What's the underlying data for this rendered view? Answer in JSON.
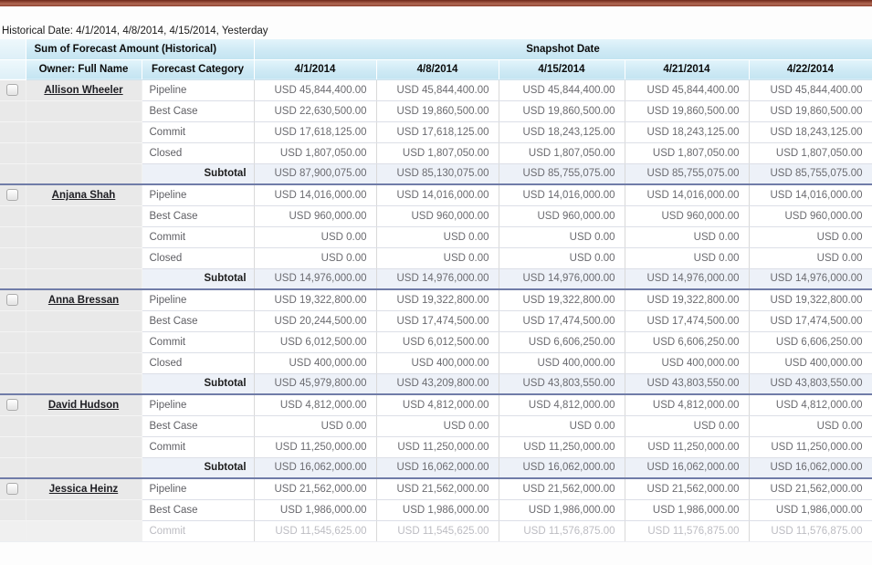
{
  "page": {
    "historical_date_line": "Historical Date: 4/1/2014, 4/8/2014, 4/15/2014, Yesterday",
    "accent_color": "#9a4a36"
  },
  "table": {
    "measure_header": "Sum of Forecast Amount (Historical)",
    "snapshot_header": "Snapshot Date",
    "owner_col_header": "Owner: Full Name",
    "category_col_header": "Forecast Category",
    "date_headers": [
      "4/1/2014",
      "4/8/2014",
      "4/15/2014",
      "4/21/2014",
      "4/22/2014"
    ],
    "subtotal_label": "Subtotal",
    "groups": [
      {
        "owner": "Allison Wheeler",
        "rows": [
          {
            "category": "Pipeline",
            "values": [
              "USD 45,844,400.00",
              "USD 45,844,400.00",
              "USD 45,844,400.00",
              "USD 45,844,400.00",
              "USD 45,844,400.00"
            ]
          },
          {
            "category": "Best Case",
            "values": [
              "USD 22,630,500.00",
              "USD 19,860,500.00",
              "USD 19,860,500.00",
              "USD 19,860,500.00",
              "USD 19,860,500.00"
            ]
          },
          {
            "category": "Commit",
            "values": [
              "USD 17,618,125.00",
              "USD 17,618,125.00",
              "USD 18,243,125.00",
              "USD 18,243,125.00",
              "USD 18,243,125.00"
            ]
          },
          {
            "category": "Closed",
            "values": [
              "USD 1,807,050.00",
              "USD 1,807,050.00",
              "USD 1,807,050.00",
              "USD 1,807,050.00",
              "USD 1,807,050.00"
            ]
          }
        ],
        "subtotal": [
          "USD 87,900,075.00",
          "USD 85,130,075.00",
          "USD 85,755,075.00",
          "USD 85,755,075.00",
          "USD 85,755,075.00"
        ]
      },
      {
        "owner": "Anjana Shah",
        "rows": [
          {
            "category": "Pipeline",
            "values": [
              "USD 14,016,000.00",
              "USD 14,016,000.00",
              "USD 14,016,000.00",
              "USD 14,016,000.00",
              "USD 14,016,000.00"
            ]
          },
          {
            "category": "Best Case",
            "values": [
              "USD 960,000.00",
              "USD 960,000.00",
              "USD 960,000.00",
              "USD 960,000.00",
              "USD 960,000.00"
            ]
          },
          {
            "category": "Commit",
            "values": [
              "USD 0.00",
              "USD 0.00",
              "USD 0.00",
              "USD 0.00",
              "USD 0.00"
            ]
          },
          {
            "category": "Closed",
            "values": [
              "USD 0.00",
              "USD 0.00",
              "USD 0.00",
              "USD 0.00",
              "USD 0.00"
            ]
          }
        ],
        "subtotal": [
          "USD 14,976,000.00",
          "USD 14,976,000.00",
          "USD 14,976,000.00",
          "USD 14,976,000.00",
          "USD 14,976,000.00"
        ]
      },
      {
        "owner": "Anna Bressan",
        "rows": [
          {
            "category": "Pipeline",
            "values": [
              "USD 19,322,800.00",
              "USD 19,322,800.00",
              "USD 19,322,800.00",
              "USD 19,322,800.00",
              "USD 19,322,800.00"
            ]
          },
          {
            "category": "Best Case",
            "values": [
              "USD 20,244,500.00",
              "USD 17,474,500.00",
              "USD 17,474,500.00",
              "USD 17,474,500.00",
              "USD 17,474,500.00"
            ]
          },
          {
            "category": "Commit",
            "values": [
              "USD 6,012,500.00",
              "USD 6,012,500.00",
              "USD 6,606,250.00",
              "USD 6,606,250.00",
              "USD 6,606,250.00"
            ]
          },
          {
            "category": "Closed",
            "values": [
              "USD 400,000.00",
              "USD 400,000.00",
              "USD 400,000.00",
              "USD 400,000.00",
              "USD 400,000.00"
            ]
          }
        ],
        "subtotal": [
          "USD 45,979,800.00",
          "USD 43,209,800.00",
          "USD 43,803,550.00",
          "USD 43,803,550.00",
          "USD 43,803,550.00"
        ]
      },
      {
        "owner": "David Hudson",
        "rows": [
          {
            "category": "Pipeline",
            "values": [
              "USD 4,812,000.00",
              "USD 4,812,000.00",
              "USD 4,812,000.00",
              "USD 4,812,000.00",
              "USD 4,812,000.00"
            ]
          },
          {
            "category": "Best Case",
            "values": [
              "USD 0.00",
              "USD 0.00",
              "USD 0.00",
              "USD 0.00",
              "USD 0.00"
            ]
          },
          {
            "category": "Commit",
            "values": [
              "USD 11,250,000.00",
              "USD 11,250,000.00",
              "USD 11,250,000.00",
              "USD 11,250,000.00",
              "USD 11,250,000.00"
            ]
          }
        ],
        "subtotal": [
          "USD 16,062,000.00",
          "USD 16,062,000.00",
          "USD 16,062,000.00",
          "USD 16,062,000.00",
          "USD 16,062,000.00"
        ]
      },
      {
        "owner": "Jessica Heinz",
        "rows": [
          {
            "category": "Pipeline",
            "values": [
              "USD 21,562,000.00",
              "USD 21,562,000.00",
              "USD 21,562,000.00",
              "USD 21,562,000.00",
              "USD 21,562,000.00"
            ]
          },
          {
            "category": "Best Case",
            "values": [
              "USD 1,986,000.00",
              "USD 1,986,000.00",
              "USD 1,986,000.00",
              "USD 1,986,000.00",
              "USD 1,986,000.00"
            ]
          },
          {
            "category": "Commit",
            "values": [
              "USD 11,545,625.00",
              "USD 11,545,625.00",
              "USD 11,576,875.00",
              "USD 11,576,875.00",
              "USD 11,576,875.00"
            ],
            "faded": true
          }
        ],
        "subtotal": null
      }
    ]
  }
}
